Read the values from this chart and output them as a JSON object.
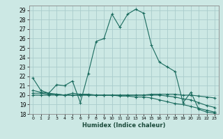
{
  "title": "",
  "xlabel": "Humidex (Indice chaleur)",
  "ylabel": "",
  "bg_color": "#cce8e4",
  "grid_color": "#aacccc",
  "line_color": "#1a6b5e",
  "xlim": [
    -0.5,
    23.5
  ],
  "ylim": [
    18,
    29.5
  ],
  "yticks": [
    18,
    19,
    20,
    21,
    22,
    23,
    24,
    25,
    26,
    27,
    28,
    29
  ],
  "xticks": [
    0,
    1,
    2,
    3,
    4,
    5,
    6,
    7,
    8,
    9,
    10,
    11,
    12,
    13,
    14,
    15,
    16,
    17,
    18,
    19,
    20,
    21,
    22,
    23
  ],
  "series": [
    {
      "x": [
        0,
        1,
        2,
        3,
        4,
        5,
        6,
        7,
        8,
        9,
        10,
        11,
        12,
        13,
        14,
        15,
        16,
        17,
        18,
        19,
        20,
        21,
        22,
        23
      ],
      "y": [
        21.8,
        20.5,
        20.2,
        21.1,
        21.0,
        21.5,
        19.2,
        22.3,
        25.7,
        26.0,
        28.6,
        27.2,
        28.6,
        29.1,
        28.7,
        25.3,
        23.5,
        23.0,
        22.5,
        19.2,
        20.3,
        18.5,
        18.2,
        18.1
      ]
    },
    {
      "x": [
        0,
        1,
        2,
        3,
        4,
        5,
        6,
        7,
        8,
        9,
        10,
        11,
        12,
        13,
        14,
        15,
        16,
        17,
        18,
        19,
        20,
        21,
        22,
        23
      ],
      "y": [
        20.5,
        20.3,
        20.2,
        20.1,
        20.0,
        20.0,
        20.0,
        20.0,
        20.0,
        20.0,
        20.0,
        20.0,
        20.0,
        20.0,
        20.0,
        20.0,
        20.0,
        19.9,
        19.8,
        19.6,
        19.5,
        19.2,
        18.9,
        18.7
      ]
    },
    {
      "x": [
        0,
        1,
        2,
        3,
        4,
        5,
        6,
        7,
        8,
        9,
        10,
        11,
        12,
        13,
        14,
        15,
        16,
        17,
        18,
        19,
        20,
        21,
        22,
        23
      ],
      "y": [
        20.2,
        20.2,
        20.1,
        20.1,
        20.0,
        20.2,
        20.1,
        20.1,
        20.0,
        20.0,
        20.0,
        19.9,
        19.9,
        19.8,
        19.8,
        19.7,
        19.5,
        19.3,
        19.1,
        19.0,
        18.8,
        18.6,
        18.4,
        18.2
      ]
    },
    {
      "x": [
        0,
        1,
        2,
        3,
        4,
        5,
        6,
        7,
        8,
        9,
        10,
        11,
        12,
        13,
        14,
        15,
        16,
        17,
        18,
        19,
        20,
        21,
        22,
        23
      ],
      "y": [
        20.0,
        20.0,
        20.0,
        20.0,
        20.0,
        20.0,
        20.0,
        20.0,
        20.0,
        20.0,
        20.0,
        20.0,
        20.0,
        20.0,
        20.0,
        20.1,
        20.1,
        20.1,
        20.1,
        20.0,
        20.0,
        19.9,
        19.8,
        19.7
      ]
    }
  ]
}
